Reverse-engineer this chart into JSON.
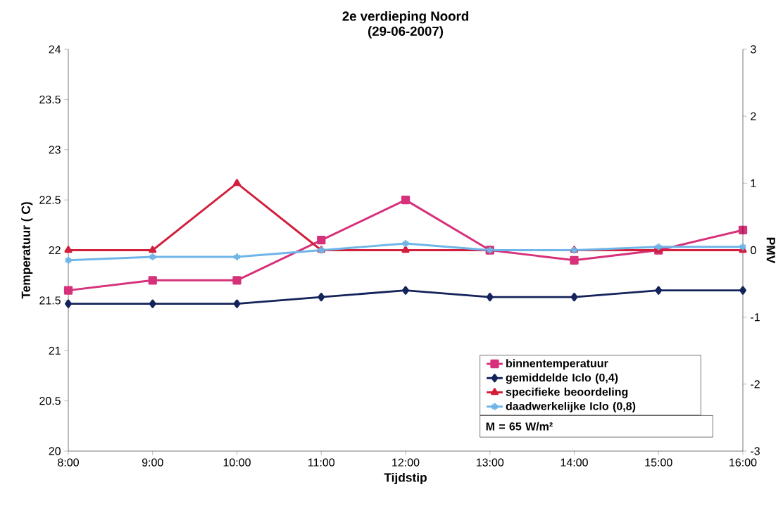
{
  "chart_data": {
    "type": "line",
    "title": "2e verdieping Noord",
    "subtitle": "(29-06-2007)",
    "xlabel": "Tijdstip",
    "ylabel": "Temperatuur ( C)",
    "y2label": "PMV",
    "categories": [
      "8:00",
      "9:00",
      "10:00",
      "11:00",
      "12:00",
      "13:00",
      "14:00",
      "15:00",
      "16:00"
    ],
    "series": [
      {
        "name": "binnentemperatuur",
        "color": "#d6317a",
        "marker": "square",
        "axis": "y",
        "values": [
          21.6,
          21.7,
          21.7,
          22.1,
          22.5,
          22.0,
          21.9,
          22.0,
          22.2
        ]
      },
      {
        "name": "gemiddelde Iclo (0,4)",
        "color": "#14235a",
        "marker": "diamond",
        "axis": "y2",
        "values": [
          -0.8,
          -0.8,
          -0.8,
          -0.7,
          -0.6,
          -0.7,
          -0.7,
          -0.6,
          -0.6
        ]
      },
      {
        "name": "specifieke beoordeling",
        "color": "#d21f3c",
        "marker": "triangle",
        "axis": "y2",
        "values": [
          0,
          0,
          1,
          0,
          0,
          0,
          0,
          0,
          0
        ]
      },
      {
        "name": "daadwerkelijke Iclo (0,8)",
        "color": "#6fb5e8",
        "marker": "cross",
        "axis": "y2",
        "values": [
          -0.15,
          -0.1,
          -0.1,
          0,
          0.1,
          0,
          0,
          0.05,
          0.05
        ]
      }
    ],
    "ylim": [
      20,
      24
    ],
    "yticks": [
      20,
      20.5,
      21,
      21.5,
      22,
      22.5,
      23,
      23.5,
      24
    ],
    "y2lim": [
      -3,
      3
    ],
    "y2ticks": [
      -3,
      -2,
      -1,
      0,
      1,
      2,
      3
    ],
    "legend": "bottom right",
    "grid": false,
    "line_style": "solid",
    "annotations": [
      "M = 65 W/m²"
    ]
  }
}
